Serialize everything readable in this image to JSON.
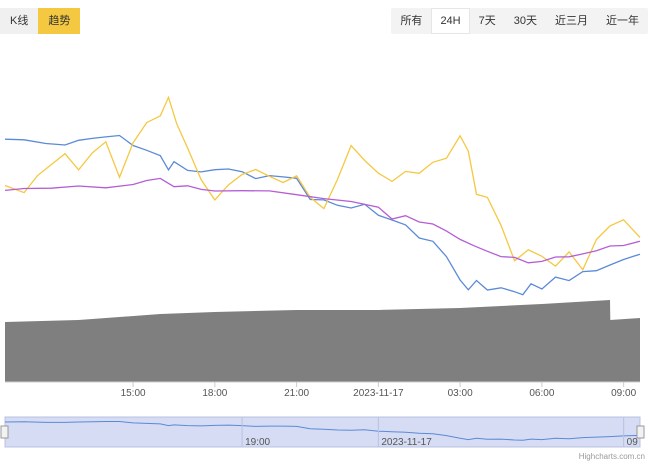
{
  "tabs": [
    {
      "label": "K线",
      "active": false
    },
    {
      "label": "趋势",
      "active": true
    }
  ],
  "range_buttons": [
    {
      "label": "所有",
      "active": false
    },
    {
      "label": "24H",
      "active": true
    },
    {
      "label": "7天",
      "active": false
    },
    {
      "label": "30天",
      "active": false
    },
    {
      "label": "近三月",
      "active": false
    },
    {
      "label": "近一年",
      "active": false
    }
  ],
  "credit": "Highcharts.com.cn",
  "colors": {
    "series_blue": "#5b8ad8",
    "series_yellow": "#f5c842",
    "series_purple": "#b45ed6",
    "volume": "#7f7f7f",
    "navigator_fill": "#d5dcf3"
  },
  "chart_data": {
    "type": "line",
    "x_ticks": [
      "15:00",
      "18:00",
      "21:00",
      "2023-11-17",
      "03:00",
      "06:00",
      "09:00"
    ],
    "x_tick_hours": [
      15,
      18,
      21,
      24,
      27,
      30,
      33
    ],
    "x_range_hours": [
      10.3,
      33.6
    ],
    "navigator_ticks": [
      "19:00",
      "2023-11-17",
      "09"
    ],
    "navigator_tick_hours": [
      19,
      24,
      33
    ],
    "series": [
      {
        "color": "#5b8ad8",
        "x": [
          10.3,
          11,
          11.8,
          12.5,
          13,
          13.5,
          14,
          14.5,
          15,
          15.5,
          16,
          16.3,
          16.5,
          17,
          17.5,
          18,
          18.5,
          19,
          19.5,
          20,
          20.5,
          21,
          21.5,
          22,
          22.5,
          23,
          23.5,
          24,
          24.5,
          25,
          25.5,
          26,
          26.5,
          27,
          27.3,
          27.6,
          28,
          28.5,
          29,
          29.3,
          29.6,
          30,
          30.5,
          31,
          31.5,
          32,
          32.5,
          33,
          33.6
        ],
        "y": [
          62,
          63,
          60,
          60,
          62,
          63,
          64,
          64,
          58,
          56,
          54,
          47,
          50,
          47,
          46,
          48,
          49,
          47,
          44,
          45,
          45,
          44,
          34,
          32,
          29,
          28,
          30,
          24,
          22,
          20,
          16,
          14,
          6,
          -5,
          -10,
          -5,
          -9,
          -8,
          -12,
          -13,
          -8,
          -10,
          -5,
          -7,
          -2,
          0,
          2,
          5,
          7
        ]
      },
      {
        "color": "#f5c842",
        "x": [
          10.3,
          11,
          11.5,
          12,
          12.5,
          13,
          13.5,
          14,
          14.5,
          15,
          15.5,
          16,
          16.3,
          16.6,
          17,
          17.5,
          18,
          18.5,
          19,
          19.5,
          20,
          20.5,
          21,
          21.5,
          22,
          22.5,
          23,
          23.5,
          24,
          24.5,
          25,
          25.5,
          26,
          26.5,
          27,
          27.3,
          27.6,
          28,
          28.5,
          29,
          29.5,
          30,
          30.5,
          31,
          31.5,
          32,
          32.5,
          33,
          33.6
        ],
        "y": [
          40,
          36,
          44,
          49,
          54,
          47,
          55,
          60,
          43,
          61,
          70,
          74,
          83,
          70,
          59,
          43,
          32,
          39,
          45,
          47,
          44,
          41,
          43,
          35,
          30,
          43,
          60,
          52,
          47,
          42,
          47,
          45,
          50,
          52,
          63,
          55,
          35,
          34,
          21,
          4,
          10,
          7,
          2,
          8,
          0,
          15,
          20,
          22,
          14
        ]
      },
      {
        "color": "#b45ed6",
        "x": [
          10.3,
          11,
          12,
          13,
          14,
          15,
          15.5,
          16,
          16.5,
          17,
          17.5,
          18,
          19,
          20,
          21,
          22,
          23,
          24,
          24.5,
          25,
          25.5,
          26,
          26.5,
          27,
          27.5,
          28,
          28.5,
          29,
          29.5,
          30,
          30.5,
          31,
          31.5,
          32,
          32.5,
          33,
          33.6
        ],
        "y": [
          36,
          37,
          39,
          40,
          40,
          41,
          43,
          44,
          40,
          39,
          37,
          37,
          37,
          36,
          35,
          33,
          32,
          30,
          25,
          26,
          23,
          22,
          18,
          14,
          10,
          8,
          5,
          4,
          2,
          3,
          4,
          5,
          7,
          9,
          11,
          12,
          14
        ]
      }
    ],
    "volume": {
      "x": [
        10.3,
        13,
        16,
        18,
        21,
        24,
        27,
        30,
        32.5,
        32.51,
        33.6
      ],
      "y": [
        30,
        31,
        34,
        35,
        36,
        36,
        37,
        39,
        41,
        31,
        32
      ]
    }
  }
}
